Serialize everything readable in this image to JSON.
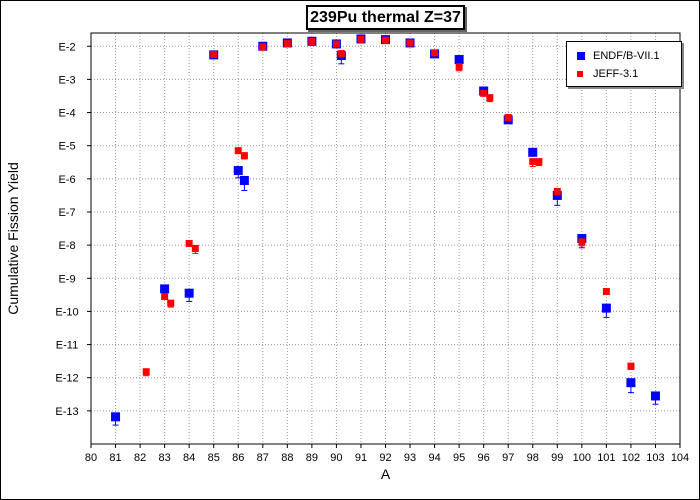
{
  "chart_data": {
    "type": "scatter",
    "title": "239Pu thermal Z=37",
    "xlabel": "A",
    "ylabel": "Cumulative Fission Yield",
    "xlim": [
      80,
      104
    ],
    "ylim_exp": [
      -14,
      -1.6
    ],
    "y_scale": "log",
    "grid": true,
    "legend_position": "top-right",
    "x_ticks": [
      "80",
      "81",
      "82",
      "83",
      "84",
      "85",
      "86",
      "87",
      "88",
      "89",
      "90",
      "91",
      "92",
      "93",
      "94",
      "95",
      "96",
      "97",
      "98",
      "99",
      "100",
      "101",
      "102",
      "103",
      "104"
    ],
    "y_ticks": [
      {
        "exp": -2,
        "label": "E-2"
      },
      {
        "exp": -3,
        "label": "E-3"
      },
      {
        "exp": -4,
        "label": "E-4"
      },
      {
        "exp": -5,
        "label": "E-5"
      },
      {
        "exp": -6,
        "label": "E-6"
      },
      {
        "exp": -7,
        "label": "E-7"
      },
      {
        "exp": -8,
        "label": "E-8"
      },
      {
        "exp": -9,
        "label": "E-9"
      },
      {
        "exp": -10,
        "label": "E-10"
      },
      {
        "exp": -11,
        "label": "E-11"
      },
      {
        "exp": -12,
        "label": "E-12"
      },
      {
        "exp": -13,
        "label": "E-13"
      }
    ],
    "series": [
      {
        "name": "ENDF/B-VII.1",
        "color": "#0000ff",
        "marker": "square",
        "points": [
          {
            "x": 81,
            "y": -13.18,
            "err": 0.25
          },
          {
            "x": 83,
            "y": -9.32,
            "err": 0.15
          },
          {
            "x": 84,
            "y": -9.45,
            "err": 0.25
          },
          {
            "x": 85,
            "y": -2.26,
            "err": 0.05
          },
          {
            "x": 86,
            "y": -5.75,
            "err": 0.22
          },
          {
            "x": 86.25,
            "y": -6.05,
            "err": 0.3
          },
          {
            "x": 87,
            "y": -2.0,
            "err": 0.05
          },
          {
            "x": 88,
            "y": -1.9,
            "err": 0.05
          },
          {
            "x": 89,
            "y": -1.85,
            "err": 0.05
          },
          {
            "x": 90,
            "y": -1.93,
            "err": 0.08
          },
          {
            "x": 90.2,
            "y": -2.28,
            "err": 0.25
          },
          {
            "x": 91,
            "y": -1.78,
            "err": 0.05
          },
          {
            "x": 92,
            "y": -1.8,
            "err": 0.05
          },
          {
            "x": 93,
            "y": -1.9,
            "err": 0.05
          },
          {
            "x": 94,
            "y": -2.23,
            "err": 0.08
          },
          {
            "x": 95,
            "y": -2.4,
            "err": 0.08
          },
          {
            "x": 96,
            "y": -3.35,
            "err": 0.1
          },
          {
            "x": 97,
            "y": -4.22,
            "err": 0.1
          },
          {
            "x": 98,
            "y": -5.2,
            "err": 0.1
          },
          {
            "x": 99,
            "y": -6.5,
            "err": 0.3
          },
          {
            "x": 100,
            "y": -7.8,
            "err": 0.28
          },
          {
            "x": 101,
            "y": -9.9,
            "err": 0.28
          },
          {
            "x": 102,
            "y": -12.15,
            "err": 0.3
          },
          {
            "x": 103,
            "y": -12.55,
            "err": 0.25
          }
        ]
      },
      {
        "name": "JEFF-3.1",
        "color": "#ff0000",
        "marker": "square",
        "points": [
          {
            "x": 82.25,
            "y": -11.82,
            "err": 0.12
          },
          {
            "x": 83,
            "y": -9.55,
            "err": 0.08
          },
          {
            "x": 83.25,
            "y": -9.75,
            "err": 0.12
          },
          {
            "x": 84,
            "y": -7.95,
            "err": 0.08
          },
          {
            "x": 84.25,
            "y": -8.1,
            "err": 0.15
          },
          {
            "x": 85,
            "y": -2.25,
            "err": 0.05
          },
          {
            "x": 86,
            "y": -5.15,
            "err": 0.05
          },
          {
            "x": 86.25,
            "y": -5.3,
            "err": 0.1
          },
          {
            "x": 87,
            "y": -2.02,
            "err": 0.05
          },
          {
            "x": 88,
            "y": -1.92,
            "err": 0.05
          },
          {
            "x": 89,
            "y": -1.86,
            "err": 0.05
          },
          {
            "x": 90,
            "y": -1.93,
            "err": 0.05
          },
          {
            "x": 90.2,
            "y": -2.22,
            "err": 0.1
          },
          {
            "x": 91,
            "y": -1.79,
            "err": 0.05
          },
          {
            "x": 92,
            "y": -1.82,
            "err": 0.05
          },
          {
            "x": 93,
            "y": -1.9,
            "err": 0.05
          },
          {
            "x": 94,
            "y": -2.2,
            "err": 0.08
          },
          {
            "x": 95,
            "y": -2.62,
            "err": 0.12
          },
          {
            "x": 96,
            "y": -3.42,
            "err": 0.08
          },
          {
            "x": 96.25,
            "y": -3.55,
            "err": 0.12
          },
          {
            "x": 97,
            "y": -4.15,
            "err": 0.1
          },
          {
            "x": 98,
            "y": -5.48,
            "err": 0.15
          },
          {
            "x": 98.25,
            "y": -5.48,
            "err": 0.12
          },
          {
            "x": 99,
            "y": -6.38,
            "err": 0.1
          },
          {
            "x": 100,
            "y": -7.9,
            "err": 0.12
          },
          {
            "x": 101,
            "y": -9.4,
            "err": 0.08
          },
          {
            "x": 102,
            "y": -11.65,
            "err": 0.1
          }
        ]
      }
    ]
  }
}
